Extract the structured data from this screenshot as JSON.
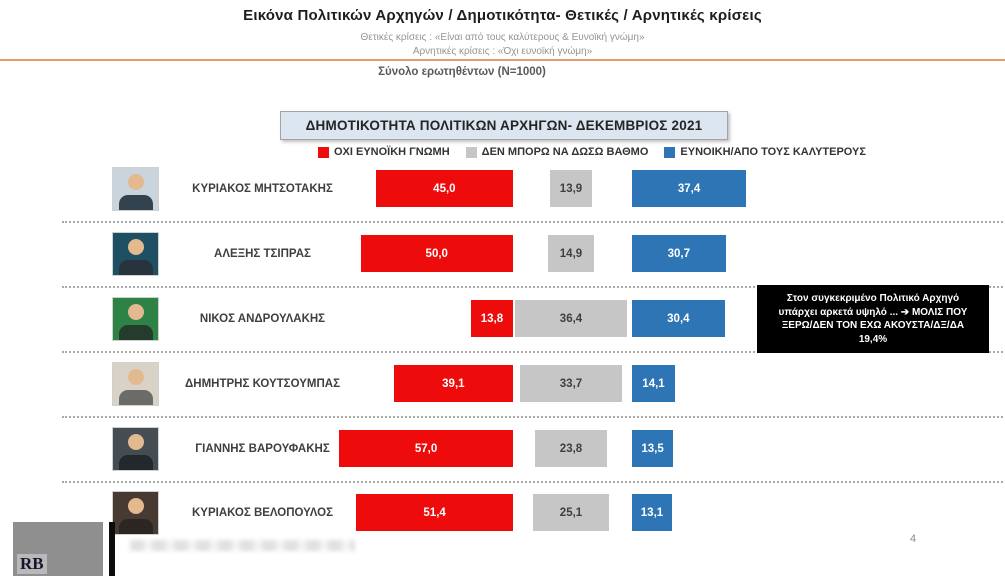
{
  "header": {
    "title": "Εικόνα Πολιτικών Αρχηγών / Δημοτικότητα- Θετικές / Αρνητικές κρίσεις",
    "subtitle_positive": "Θετικές κρίσεις : «Είναι από τους καλύτερους &  Ευνοϊκή γνώμη»",
    "subtitle_negative": "Αρνητικές κρίσεις : «Όχι ευνοϊκή γνώμη»",
    "sample": "Σύνολο ερωτηθέντων (N=1000)"
  },
  "chart_header": {
    "title": "ΔΗΜΟΤΙΚΟΤΗΤΑ ΠΟΛΙΤΙΚΩΝ ΑΡΧΗΓΩΝ- ΔΕΚΕΜΒΡΙΟΣ 2021"
  },
  "legend": [
    {
      "label": "ΟΧΙ ΕΥΝΟΪΚΗ ΓΝΩΜΗ",
      "color": "#ee0b0b"
    },
    {
      "label": "ΔΕΝ ΜΠΟΡΩ ΝΑ ΔΩΣΩ ΒΑΘΜΟ",
      "color": "#c6c6c6"
    },
    {
      "label": "ΕΥΝΟΙΚΗ/ΑΠΟ ΤΟΥΣ ΚΑΛΥΤΕΡΟΥΣ",
      "color": "#2e75b6"
    }
  ],
  "chart_data": {
    "type": "bar",
    "orientation": "horizontal-diverging",
    "title": "ΔΗΜΟΤΙΚΟΤΗΤΑ ΠΟΛΙΤΙΚΩΝ ΑΡΧΗΓΩΝ- ΔΕΚΕΜΒΡΙΟΣ 2021",
    "categories": [
      "ΚΥΡΙΑΚΟΣ ΜΗΤΣΟΤΑΚΗΣ",
      "ΑΛΕΞΗΣ ΤΣΙΠΡΑΣ",
      "ΝΙΚΟΣ ΑΝΔΡΟΥΛΑΚΗΣ",
      "ΔΗΜΗΤΡΗΣ ΚΟΥΤΣΟΥΜΠΑΣ",
      "ΓΙΑΝΝΗΣ ΒΑΡΟΥΦΑΚΗΣ",
      "ΚΥΡΙΑΚΟΣ ΒΕΛΟΠΟΥΛΟΣ"
    ],
    "series": [
      {
        "name": "ΟΧΙ ΕΥΝΟΪΚΗ ΓΝΩΜΗ",
        "color": "#ee0b0b",
        "values": [
          45.0,
          50.0,
          13.8,
          39.1,
          57.0,
          51.4
        ]
      },
      {
        "name": "ΔΕΝ ΜΠΟΡΩ ΝΑ ΔΩΣΩ ΒΑΘΜΟ",
        "color": "#c6c6c6",
        "values": [
          13.9,
          14.9,
          36.4,
          33.7,
          23.8,
          25.1
        ]
      },
      {
        "name": "ΕΥΝΟΙΚΗ/ΑΠΟ ΤΟΥΣ ΚΑΛΥΤΕΡΟΥΣ",
        "color": "#2e75b6",
        "values": [
          37.4,
          30.7,
          30.4,
          14.1,
          13.5,
          13.1
        ]
      }
    ],
    "value_labels": [
      [
        "45,0",
        "13,9",
        "37,4"
      ],
      [
        "50,0",
        "14,9",
        "30,7"
      ],
      [
        "13,8",
        "36,4",
        "30,4"
      ],
      [
        "39,1",
        "33,7",
        "14,1"
      ],
      [
        "57,0",
        "23,8",
        "13,5"
      ],
      [
        "51,4",
        "25,1",
        "13,1"
      ]
    ],
    "legend_position": "top",
    "grid": false
  },
  "annotation": {
    "lines": [
      "Στον συγκεκριμένο Πολιτικό Αρχηγό",
      "υπάρχει αρκετά υψηλό ... ➔ ΜΟΛΙΣ ΠΟΥ",
      "ΞΕΡΩ/ΔΕΝ ΤΟΝ ΕΧΩ ΑΚΟΥΣΤΑ/ΔΞ/ΔΑ",
      "19,4%"
    ]
  },
  "footer": {
    "logo_text": "RB",
    "page_number": "4"
  }
}
